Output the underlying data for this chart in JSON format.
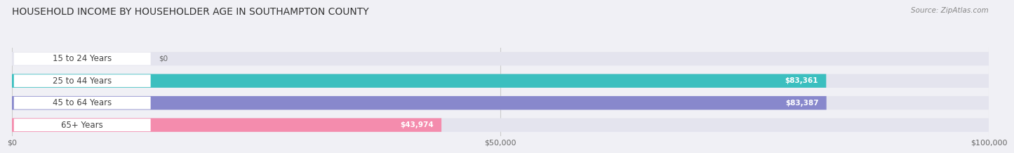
{
  "title": "HOUSEHOLD INCOME BY HOUSEHOLDER AGE IN SOUTHAMPTON COUNTY",
  "source": "Source: ZipAtlas.com",
  "categories": [
    "15 to 24 Years",
    "25 to 44 Years",
    "45 to 64 Years",
    "65+ Years"
  ],
  "values": [
    0,
    83361,
    83387,
    43974
  ],
  "bar_colors": [
    "#c9a8d4",
    "#3bbfbf",
    "#8888cc",
    "#f48cad"
  ],
  "background_color": "#f0f0f5",
  "bar_bg_color": "#e4e4ee",
  "value_labels": [
    "$0",
    "$83,361",
    "$83,387",
    "$43,974"
  ],
  "xlim": [
    0,
    100000
  ],
  "xticks": [
    0,
    50000,
    100000
  ],
  "xtick_labels": [
    "$0",
    "$50,000",
    "$100,000"
  ],
  "title_fontsize": 10,
  "source_fontsize": 7.5,
  "bar_height": 0.6
}
